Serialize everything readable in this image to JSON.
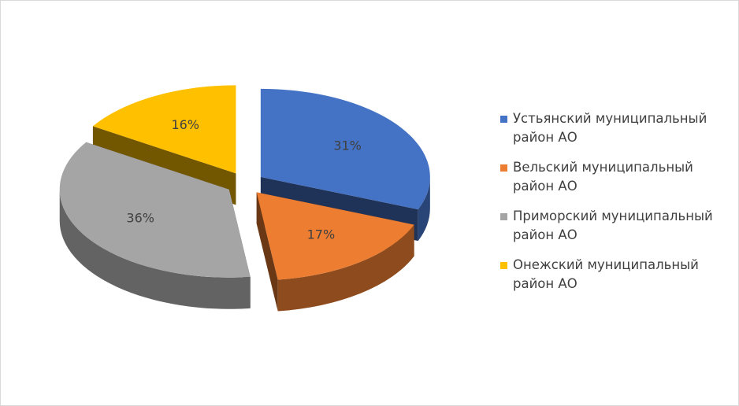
{
  "chart_data": {
    "type": "pie",
    "categories": [
      "Устьянский муниципальный район АО",
      "Вельский муниципальный район АО",
      "Приморский муниципальный район АО",
      "Онежский муниципальный район АО"
    ],
    "values": [
      31,
      17,
      36,
      16
    ],
    "value_labels": [
      "31%",
      "17%",
      "36%",
      "16%"
    ],
    "colors": [
      "#4472c4",
      "#ed7d31",
      "#a5a5a5",
      "#ffc000"
    ],
    "legend": "right"
  }
}
